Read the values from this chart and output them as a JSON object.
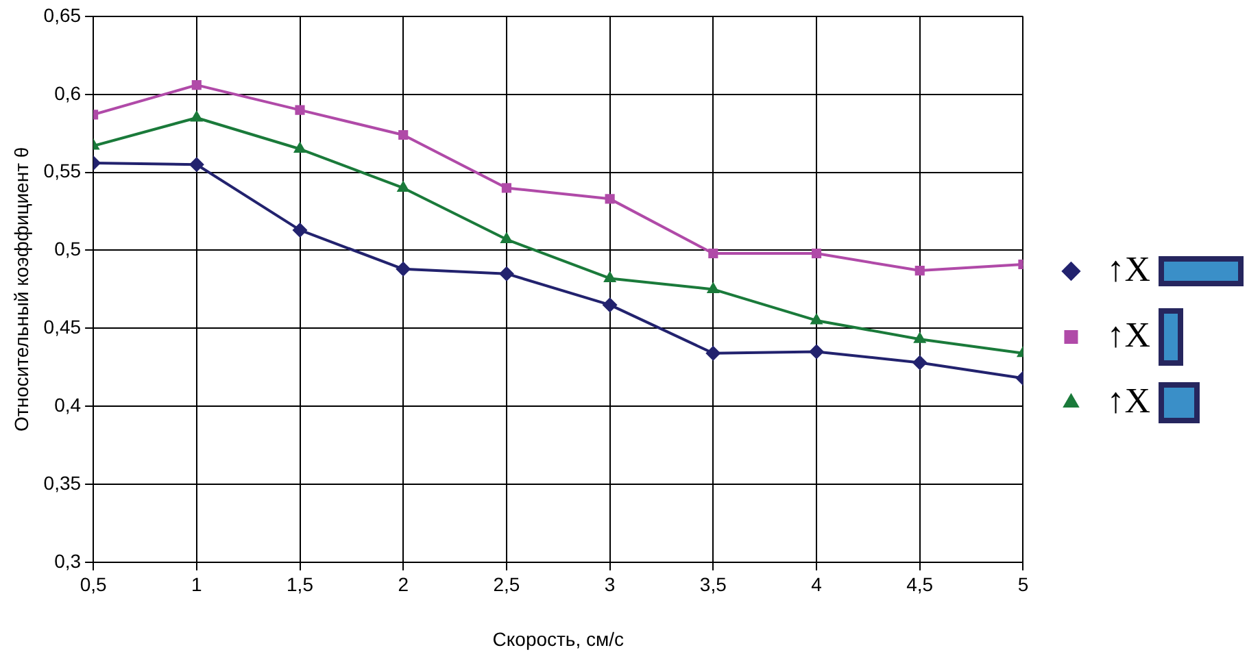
{
  "chart_data": {
    "type": "line",
    "xlabel": "Скорость, см/с",
    "ylabel": "Относительный коэффициент θ",
    "x": [
      0.5,
      1,
      1.5,
      2,
      2.5,
      3,
      3.5,
      4,
      4.5,
      5
    ],
    "series": [
      {
        "name": "↑X",
        "color": "#22226e",
        "marker": "diamond",
        "values": [
          0.556,
          0.555,
          0.513,
          0.488,
          0.485,
          0.465,
          0.434,
          0.435,
          0.428,
          0.418
        ]
      },
      {
        "name": "↑X",
        "color": "#b04aa8",
        "marker": "square",
        "values": [
          0.587,
          0.606,
          0.59,
          0.574,
          0.54,
          0.533,
          0.498,
          0.498,
          0.487,
          0.491
        ]
      },
      {
        "name": "↑X",
        "color": "#1a7a3a",
        "marker": "triangle",
        "values": [
          0.567,
          0.585,
          0.565,
          0.54,
          0.507,
          0.482,
          0.475,
          0.455,
          0.443,
          0.434
        ]
      }
    ],
    "xlim": [
      0.5,
      5
    ],
    "xticks": [
      {
        "value": 0.5,
        "label": "0,5"
      },
      1,
      {
        "value": 1.5,
        "label": "1,5"
      },
      2,
      {
        "value": 2.5,
        "label": "2,5"
      },
      3,
      {
        "value": 3.5,
        "label": "3,5"
      },
      4,
      {
        "value": 4.5,
        "label": "4,5"
      },
      5
    ],
    "ylim": [
      0.3,
      0.65
    ],
    "yticks": [
      {
        "value": 0.3,
        "label": "0,3"
      },
      {
        "value": 0.35,
        "label": "0,35"
      },
      {
        "value": 0.4,
        "label": "0,4"
      },
      {
        "value": 0.45,
        "label": "0,45"
      },
      {
        "value": 0.5,
        "label": "0,5"
      },
      {
        "value": 0.55,
        "label": "0,55"
      },
      {
        "value": 0.6,
        "label": "0,6"
      },
      {
        "value": 0.65,
        "label": "0,65"
      }
    ],
    "grid": true,
    "legend": "right",
    "line_style": "solid"
  }
}
